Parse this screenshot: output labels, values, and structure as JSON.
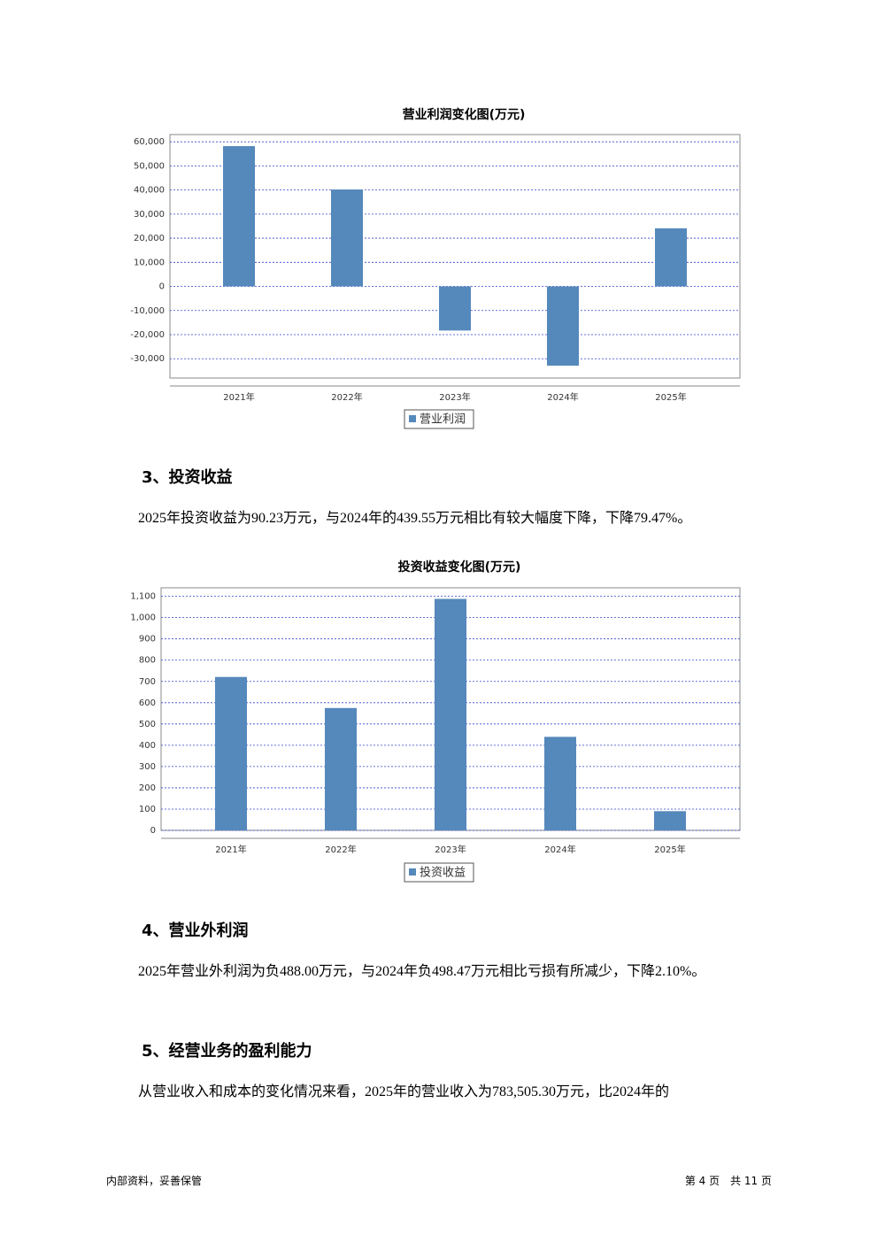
{
  "chart_data": [
    {
      "type": "bar",
      "title": "营业利润变化图(万元)",
      "categories": [
        "2021年",
        "2022年",
        "2023年",
        "2024年",
        "2025年"
      ],
      "series": [
        {
          "name": "营业利润",
          "color": "#5588bb",
          "values": [
            58200,
            40200,
            -18300,
            -32900,
            24100
          ]
        }
      ],
      "ylim": [
        -38000,
        63000
      ],
      "yticks": [
        {
          "value": 60000,
          "label": "60,000"
        },
        {
          "value": 50000,
          "label": "50,000"
        },
        {
          "value": 40000,
          "label": "40,000"
        },
        {
          "value": 30000,
          "label": "30,000"
        },
        {
          "value": 20000,
          "label": "20,000"
        },
        {
          "value": 10000,
          "label": "10,000"
        },
        0,
        {
          "value": -10000,
          "label": "-10,000"
        },
        {
          "value": -20000,
          "label": "-20,000"
        },
        {
          "value": -30000,
          "label": "-30,000"
        }
      ],
      "grid": true
    },
    {
      "type": "bar",
      "title": "投资收益变化图(万元)",
      "categories": [
        "2021年",
        "2022年",
        "2023年",
        "2024年",
        "2025年"
      ],
      "series": [
        {
          "name": "投资收益",
          "color": "#5588bb",
          "values": [
            721,
            575,
            1088,
            439.55,
            90.23
          ]
        }
      ],
      "ylim": [
        0,
        1140
      ],
      "yticks": [
        {
          "value": 1100,
          "label": "1,100"
        },
        {
          "value": 1000,
          "label": "1,000"
        },
        900,
        800,
        700,
        600,
        500,
        400,
        300,
        200,
        100,
        0
      ],
      "grid": true
    }
  ],
  "sections": [
    {
      "heading": "3、投资收益",
      "text": "2025年投资收益为90.23万元，与2024年的439.55万元相比有较大幅度下降，下降79.47%。"
    },
    {
      "heading": "4、营业外利润",
      "text": "2025年营业外利润为负488.00万元，与2024年负498.47万元相比亏损有所减少，下降2.10%。"
    },
    {
      "heading": "5、经营业务的盈利能力",
      "text": "从营业收入和成本的变化情况来看，2025年的营业收入为783,505.30万元，比2024年的"
    }
  ],
  "footer": {
    "left": "内部资料，妥善保管",
    "right": "第 4 页　共 11 页"
  }
}
